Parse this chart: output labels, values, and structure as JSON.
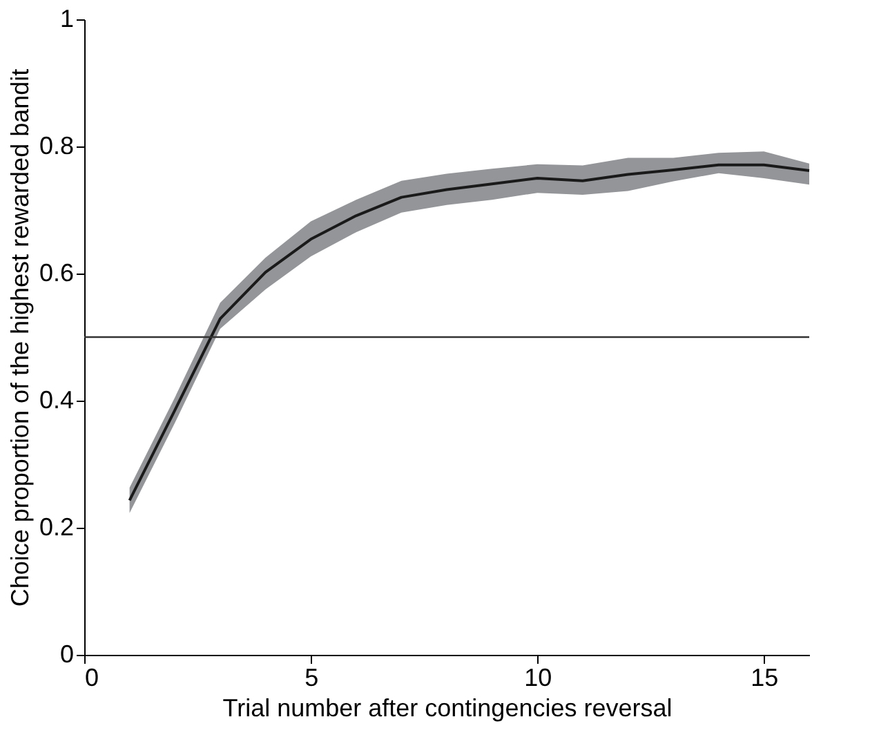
{
  "chart_data": {
    "type": "line",
    "xlabel": "Trial number after contingencies reversal",
    "ylabel": "Choice proportion of the highest rewarded bandit",
    "x": [
      1,
      2,
      3,
      4,
      5,
      6,
      7,
      8,
      9,
      10,
      11,
      12,
      13,
      14,
      15,
      16
    ],
    "series": [
      {
        "color": "#1a1a1a",
        "values": [
          0.243,
          0.385,
          0.529,
          0.602,
          0.654,
          0.691,
          0.72,
          0.732,
          0.741,
          0.75,
          0.746,
          0.756,
          0.763,
          0.771,
          0.771,
          0.762
        ],
        "lower": [
          0.223,
          0.365,
          0.513,
          0.575,
          0.627,
          0.665,
          0.696,
          0.708,
          0.716,
          0.727,
          0.724,
          0.73,
          0.745,
          0.758,
          0.75,
          0.74
        ],
        "upper": [
          0.263,
          0.405,
          0.554,
          0.625,
          0.682,
          0.716,
          0.746,
          0.757,
          0.765,
          0.772,
          0.77,
          0.782,
          0.782,
          0.79,
          0.792,
          0.773
        ]
      }
    ],
    "xlim": [
      0,
      16
    ],
    "xticks": [
      0,
      5,
      10,
      15
    ],
    "ylim": [
      0,
      1
    ],
    "yticks": [
      0,
      0.2,
      0.4,
      0.6,
      0.8,
      1
    ],
    "ref_lines": [
      {
        "axis": "y",
        "value": 0.5,
        "color": "#333333"
      }
    ],
    "grid": false,
    "marker": "none",
    "line_style": "solid"
  }
}
